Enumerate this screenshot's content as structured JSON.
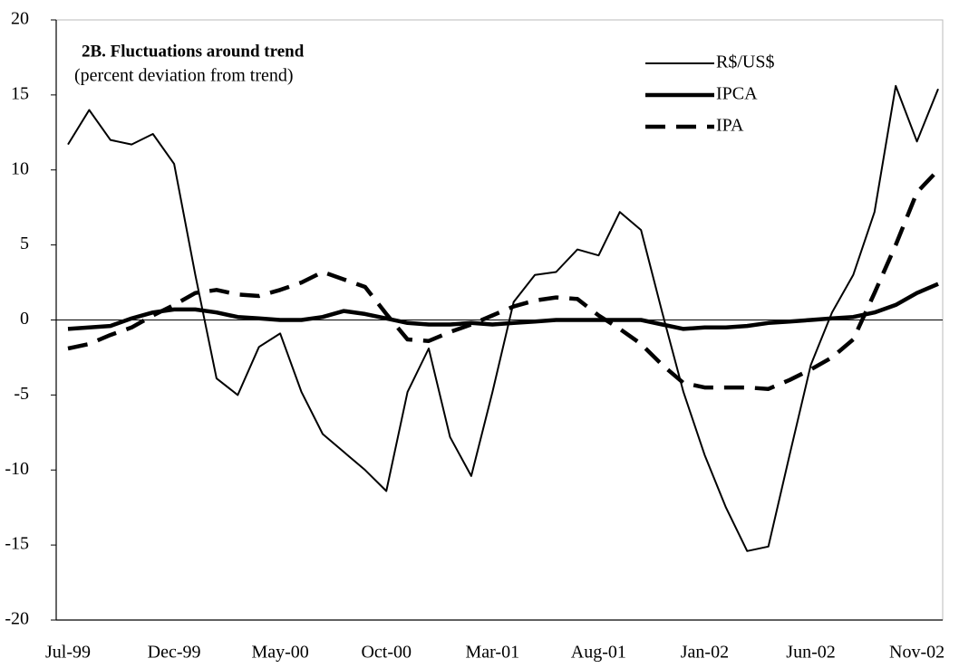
{
  "chart_data": {
    "type": "line",
    "title": "2B. Fluctuations around trend",
    "subtitle": "(percent deviation from trend)",
    "categories": [
      "Jul-99",
      null,
      null,
      null,
      null,
      "Dec-99",
      null,
      null,
      null,
      null,
      "May-00",
      null,
      null,
      null,
      null,
      "Oct-00",
      null,
      null,
      null,
      null,
      "Mar-01",
      null,
      null,
      null,
      null,
      "Aug-01",
      null,
      null,
      null,
      null,
      "Jan-02",
      null,
      null,
      null,
      null,
      "Jun-02",
      null,
      null,
      null,
      null,
      "Nov-02",
      null
    ],
    "series": [
      {
        "name": "R$/US$",
        "color": "#000000",
        "line_style": "thin",
        "values": [
          11.7,
          14,
          12,
          11.7,
          12.4,
          10.4,
          3,
          -3.9,
          -5,
          -1.8,
          -0.9,
          -4.8,
          -7.6,
          -8.8,
          -10,
          -11.4,
          -4.8,
          -1.9,
          -7.8,
          -10.4,
          -4.8,
          1.2,
          3,
          3.2,
          4.7,
          4.3,
          7.2,
          6,
          0.5,
          -4.8,
          -9,
          -12.5,
          -15.4,
          -15.1,
          -9,
          -3,
          0.5,
          3,
          7.2,
          15.6,
          11.9,
          15.4
        ]
      },
      {
        "name": "IPCA",
        "color": "#000000",
        "line_style": "thick",
        "values": [
          -0.6,
          -0.5,
          -0.4,
          0.1,
          0.5,
          0.7,
          0.7,
          0.5,
          0.2,
          0.1,
          0,
          0,
          0.2,
          0.6,
          0.4,
          0.1,
          -0.2,
          -0.3,
          -0.3,
          -0.2,
          -0.3,
          -0.2,
          -0.1,
          0,
          0,
          0,
          0,
          0,
          -0.3,
          -0.6,
          -0.5,
          -0.5,
          -0.4,
          -0.2,
          -0.1,
          0,
          0.1,
          0.2,
          0.5,
          1,
          1.8,
          2.4
        ]
      },
      {
        "name": "IPA",
        "color": "#000000",
        "line_style": "dashed",
        "values": [
          -1.9,
          -1.6,
          -1,
          -0.5,
          0.3,
          1,
          1.8,
          2,
          1.7,
          1.6,
          2,
          2.5,
          3.2,
          2.7,
          2.2,
          0.4,
          -1.3,
          -1.4,
          -0.8,
          -0.3,
          0.3,
          0.9,
          1.3,
          1.5,
          1.4,
          0.3,
          -0.6,
          -1.6,
          -3,
          -4.2,
          -4.5,
          -4.5,
          -4.5,
          -4.6,
          -4,
          -3.3,
          -2.5,
          -1.3,
          1.8,
          5,
          8.5,
          10
        ]
      }
    ],
    "ylim": [
      -20,
      20
    ],
    "yticks": [
      -20,
      -15,
      -10,
      -5,
      0,
      5,
      10,
      15,
      20
    ],
    "zero_line": true,
    "legend": "upper right"
  }
}
